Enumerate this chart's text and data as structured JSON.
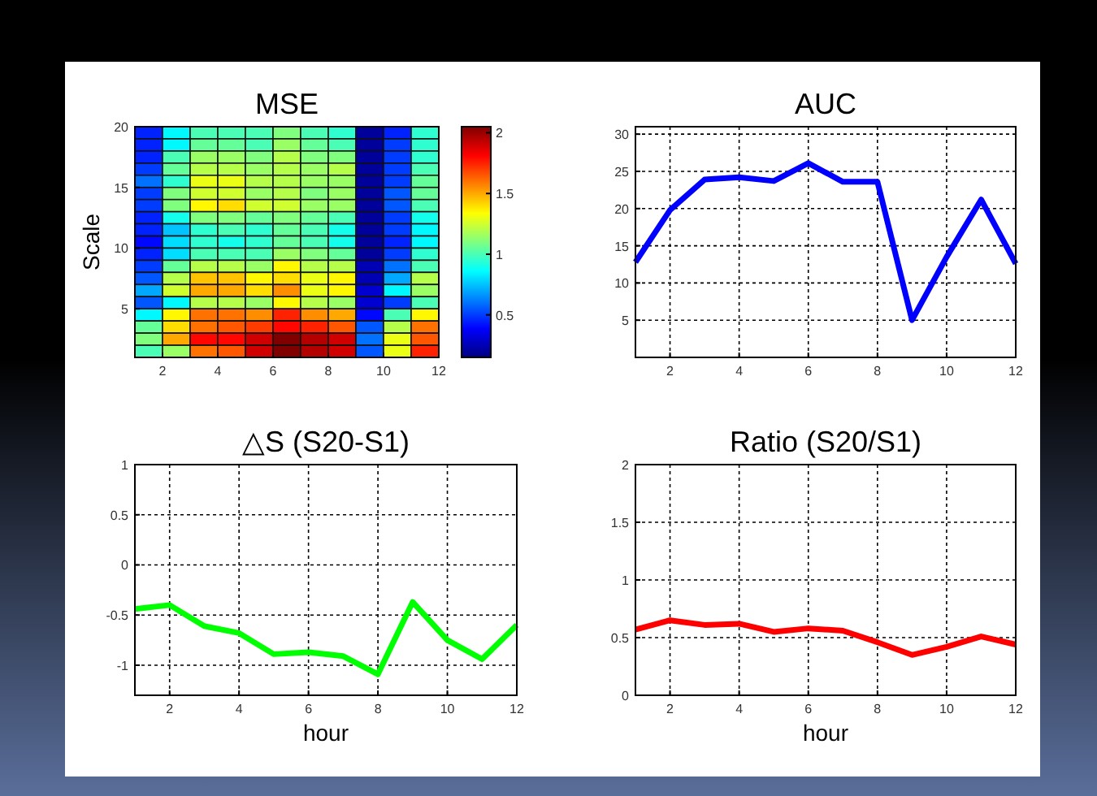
{
  "chart_data": [
    {
      "type": "heatmap",
      "title": "MSE",
      "ylabel": "Scale",
      "xlim": [
        1,
        12
      ],
      "xticks": [
        2,
        4,
        6,
        8,
        10,
        12
      ],
      "ylim": [
        1,
        20
      ],
      "yticks": [
        5,
        10,
        15,
        20
      ],
      "clim": [
        0.15,
        2.05
      ],
      "cticks": [
        0.5,
        1,
        1.5,
        2
      ],
      "cells": [
        [
          0.45,
          0.85,
          1.0,
          1.0,
          1.0,
          1.1,
          1.0,
          0.95,
          0.2,
          0.45,
          0.95
        ],
        [
          0.45,
          0.85,
          1.05,
          1.05,
          1.0,
          1.15,
          1.05,
          1.0,
          0.2,
          0.5,
          0.95
        ],
        [
          0.45,
          1.0,
          1.15,
          1.15,
          1.1,
          1.2,
          1.1,
          1.1,
          0.2,
          0.5,
          0.95
        ],
        [
          0.5,
          1.05,
          1.2,
          1.2,
          1.15,
          1.2,
          1.15,
          1.2,
          0.2,
          0.5,
          1.0
        ],
        [
          0.6,
          0.95,
          1.3,
          1.3,
          1.2,
          1.2,
          1.15,
          1.15,
          0.2,
          0.5,
          1.05
        ],
        [
          0.5,
          1.1,
          1.25,
          1.25,
          1.15,
          1.2,
          1.1,
          1.15,
          0.2,
          0.55,
          1.05
        ],
        [
          0.5,
          1.1,
          1.35,
          1.4,
          1.25,
          1.25,
          1.15,
          1.15,
          0.2,
          0.55,
          1.0
        ],
        [
          0.45,
          0.9,
          1.1,
          1.1,
          1.05,
          1.1,
          1.05,
          1.0,
          0.2,
          0.5,
          0.9
        ],
        [
          0.45,
          0.75,
          0.95,
          1.0,
          0.95,
          1.05,
          1.0,
          0.9,
          0.2,
          0.5,
          0.85
        ],
        [
          0.4,
          0.8,
          0.95,
          0.9,
          0.95,
          1.05,
          1.0,
          0.9,
          0.2,
          0.45,
          0.85
        ],
        [
          0.45,
          0.8,
          1.0,
          1.0,
          1.0,
          1.15,
          1.1,
          1.05,
          0.2,
          0.5,
          0.95
        ],
        [
          0.5,
          1.05,
          1.2,
          1.2,
          1.15,
          1.35,
          1.2,
          1.2,
          0.25,
          0.6,
          1.0
        ],
        [
          0.55,
          1.2,
          1.45,
          1.45,
          1.35,
          1.4,
          1.3,
          1.35,
          0.25,
          0.7,
          1.2
        ],
        [
          0.7,
          1.25,
          1.5,
          1.5,
          1.4,
          1.55,
          1.3,
          1.35,
          0.3,
          0.85,
          1.15
        ],
        [
          0.55,
          0.85,
          1.2,
          1.2,
          1.15,
          1.35,
          1.2,
          1.15,
          0.3,
          0.5,
          1.0
        ],
        [
          0.85,
          1.35,
          1.6,
          1.6,
          1.55,
          1.75,
          1.55,
          1.5,
          0.4,
          1.0,
          1.35
        ],
        [
          1.05,
          1.4,
          1.6,
          1.65,
          1.7,
          1.8,
          1.75,
          1.65,
          0.55,
          1.2,
          1.6
        ],
        [
          1.1,
          1.5,
          1.8,
          1.8,
          1.9,
          2.05,
          1.95,
          1.9,
          0.6,
          1.3,
          1.65
        ],
        [
          1.0,
          1.15,
          1.6,
          1.65,
          1.9,
          2.05,
          1.95,
          1.9,
          0.55,
          1.3,
          1.75
        ]
      ]
    },
    {
      "type": "line",
      "title": "AUC",
      "x": [
        1,
        2,
        3,
        4,
        5,
        6,
        7,
        8,
        9,
        10,
        11,
        12
      ],
      "xlim": [
        1,
        12
      ],
      "xticks": [
        2,
        4,
        6,
        8,
        10,
        12
      ],
      "ylim": [
        0,
        31
      ],
      "yticks": [
        5,
        10,
        15,
        20,
        25,
        30
      ],
      "grid": true,
      "series": [
        {
          "color": "#0000ff",
          "values": [
            12.8,
            19.8,
            23.9,
            24.2,
            23.7,
            26.1,
            23.6,
            23.6,
            5,
            13.5,
            21.2,
            12.6
          ]
        }
      ]
    },
    {
      "type": "line",
      "title": "△S (S20-S1)",
      "xlabel": "hour",
      "x": [
        1,
        2,
        3,
        4,
        5,
        6,
        7,
        8,
        9,
        10,
        11,
        12
      ],
      "xlim": [
        1,
        12
      ],
      "xticks": [
        2,
        4,
        6,
        8,
        10,
        12
      ],
      "ylim": [
        -1.3,
        1
      ],
      "yticks": [
        -1,
        -0.5,
        0,
        0.5,
        1
      ],
      "grid": true,
      "series": [
        {
          "color": "#00ff00",
          "values": [
            -0.44,
            -0.4,
            -0.61,
            -0.68,
            -0.89,
            -0.87,
            -0.91,
            -1.09,
            -0.37,
            -0.75,
            -0.94,
            -0.6
          ]
        }
      ]
    },
    {
      "type": "line",
      "title": "Ratio (S20/S1)",
      "xlabel": "hour",
      "x": [
        1,
        2,
        3,
        4,
        5,
        6,
        7,
        8,
        9,
        10,
        11,
        12
      ],
      "xlim": [
        1,
        12
      ],
      "xticks": [
        2,
        4,
        6,
        8,
        10,
        12
      ],
      "ylim": [
        0,
        2
      ],
      "yticks": [
        0,
        0.5,
        1,
        1.5,
        2
      ],
      "grid": true,
      "series": [
        {
          "color": "#ff0000",
          "values": [
            0.57,
            0.65,
            0.61,
            0.62,
            0.55,
            0.58,
            0.56,
            0.46,
            0.35,
            0.42,
            0.51,
            0.44
          ]
        }
      ]
    }
  ]
}
